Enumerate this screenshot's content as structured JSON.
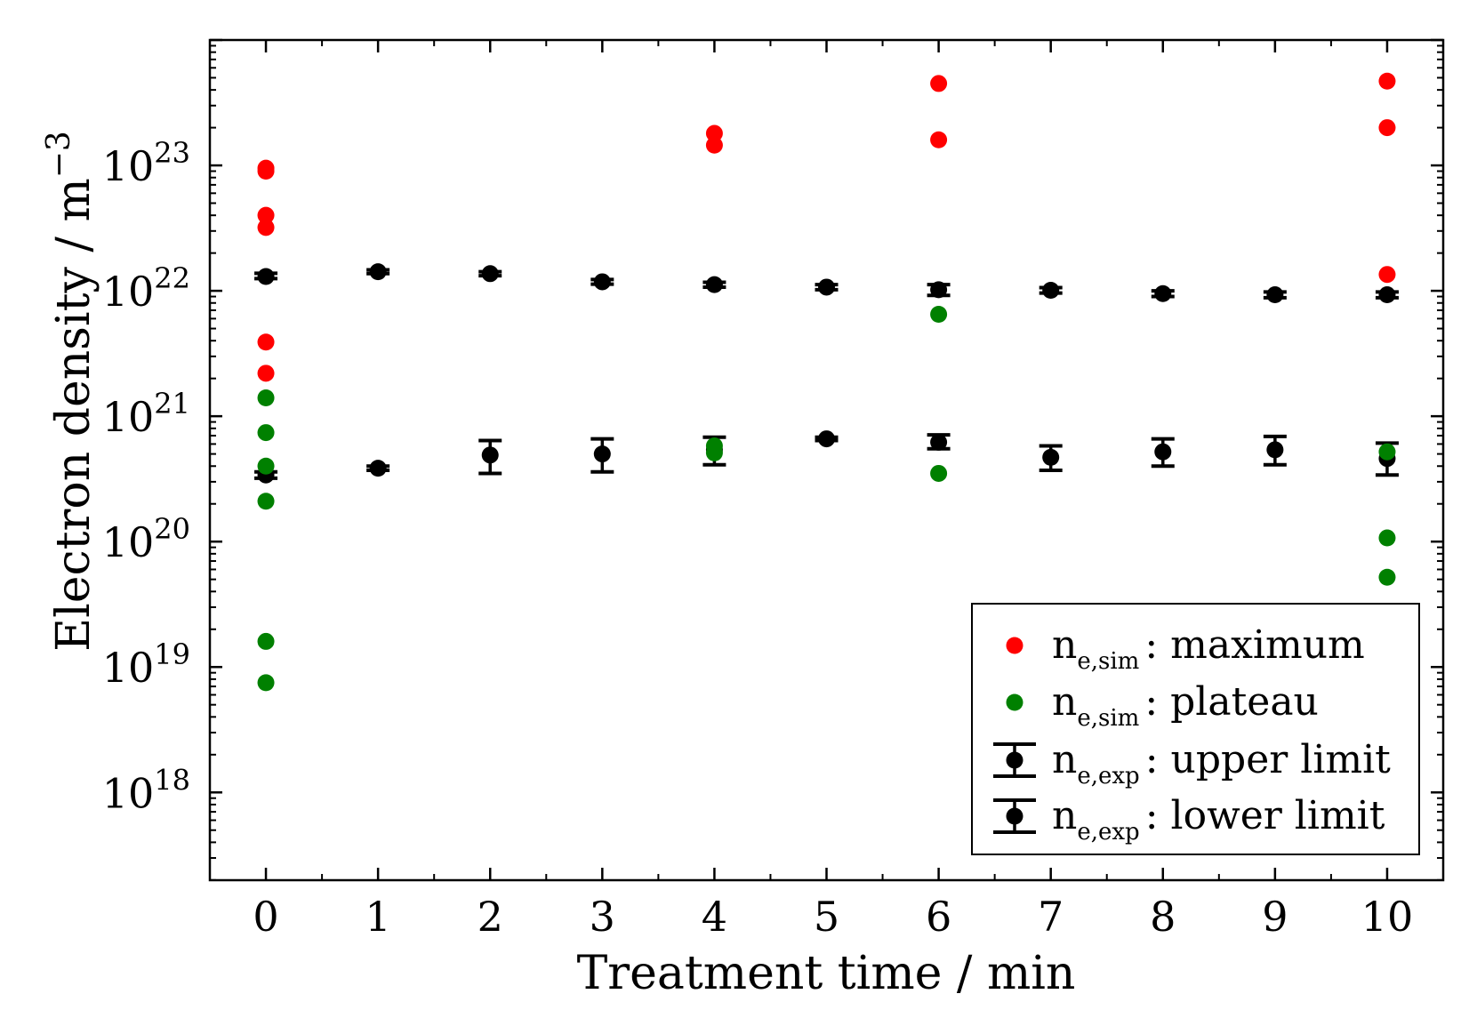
{
  "chart_data": {
    "type": "scatter",
    "xlabel": "Treatment time / min",
    "ylabel": "Electron density / m",
    "ylabel_exponent": "−3",
    "yscale": "log",
    "xlim": [
      -0.5,
      10.5
    ],
    "ylim_log10": [
      17.3,
      24.0
    ],
    "x_ticks": [
      0,
      1,
      2,
      3,
      4,
      5,
      6,
      7,
      8,
      9,
      10
    ],
    "y_tick_exponents": [
      18,
      19,
      20,
      21,
      22,
      23
    ],
    "y_tick_base": "10",
    "legend_position": "lower-right",
    "series": [
      {
        "name": "maximum",
        "legend": {
          "symbol": "n",
          "subscript": "e,sim",
          "sep": ":",
          "label": "maximum"
        },
        "color": "#ff0000",
        "marker": "circle",
        "points": [
          [
            0,
            9e+22
          ],
          [
            0,
            9.5e+22
          ],
          [
            0,
            4e+22
          ],
          [
            0,
            3.2e+22
          ],
          [
            0,
            3.9e+21
          ],
          [
            0,
            2.2e+21
          ],
          [
            4,
            1.8e+23
          ],
          [
            4,
            1.45e+23
          ],
          [
            6,
            4.5e+23
          ],
          [
            6,
            1.6e+23
          ],
          [
            10,
            4.7e+23
          ],
          [
            10,
            2e+23
          ],
          [
            10,
            1.35e+22
          ]
        ]
      },
      {
        "name": "plateau",
        "legend": {
          "symbol": "n",
          "subscript": "e,sim",
          "sep": ":",
          "label": "plateau"
        },
        "color": "#008000",
        "marker": "circle",
        "points": [
          [
            0,
            1.4e+21
          ],
          [
            0,
            7.4e+20
          ],
          [
            0,
            4e+20
          ],
          [
            0,
            2.1e+20
          ],
          [
            0,
            1.6e+19
          ],
          [
            0,
            7.5e+18
          ],
          [
            4,
            5.8e+20
          ],
          [
            4,
            5.1e+20
          ],
          [
            6,
            6.5e+21
          ],
          [
            6,
            3.5e+20
          ],
          [
            10,
            5.2e+20
          ],
          [
            10,
            1.07e+20
          ],
          [
            10,
            5.2e+19
          ]
        ]
      },
      {
        "name": "upper limit",
        "legend": {
          "symbol": "n",
          "subscript": "e,exp",
          "sep": ":",
          "label": "upper limit"
        },
        "color": "#000000",
        "marker": "circle-errorbar",
        "points": [
          [
            0,
            1.3e+22,
            1.25e+22,
            1.38e+22
          ],
          [
            1,
            1.42e+22,
            1.37e+22,
            1.47e+22
          ],
          [
            2,
            1.37e+22,
            1.32e+22,
            1.42e+22
          ],
          [
            3,
            1.18e+22,
            1.13e+22,
            1.23e+22
          ],
          [
            4,
            1.12e+22,
            1.07e+22,
            1.17e+22
          ],
          [
            5,
            1.07e+22,
            1.02e+22,
            1.12e+22
          ],
          [
            6,
            1.02e+22,
            9.2e+21,
            1.12e+22
          ],
          [
            7,
            1.01e+22,
            9.6e+21,
            1.06e+22
          ],
          [
            8,
            9.5e+21,
            9e+21,
            1e+22
          ],
          [
            9,
            9.3e+21,
            8.8e+21,
            9.8e+21
          ],
          [
            10,
            9.3e+21,
            8.8e+21,
            9.8e+21
          ]
        ]
      },
      {
        "name": "lower limit",
        "legend": {
          "symbol": "n",
          "subscript": "e,exp",
          "sep": ":",
          "label": "lower limit"
        },
        "color": "#000000",
        "marker": "circle-errorbar",
        "points": [
          [
            0,
            3.4e+20,
            3.2e+20,
            3.6e+20
          ],
          [
            1,
            3.85e+20,
            3.7e+20,
            4e+20
          ],
          [
            2,
            4.9e+20,
            3.5e+20,
            6.4e+20
          ],
          [
            3,
            5e+20,
            3.6e+20,
            6.6e+20
          ],
          [
            4,
            5.4e+20,
            4.1e+20,
            6.8e+20
          ],
          [
            5,
            6.6e+20,
            6.4e+20,
            6.8e+20
          ],
          [
            6,
            6.2e+20,
            5.5e+20,
            7.1e+20
          ],
          [
            7,
            4.7e+20,
            3.7e+20,
            5.8e+20
          ],
          [
            8,
            5.2e+20,
            4e+20,
            6.6e+20
          ],
          [
            9,
            5.4e+20,
            4.1e+20,
            6.9e+20
          ],
          [
            10,
            4.6e+20,
            3.4e+20,
            6.1e+20
          ]
        ]
      }
    ]
  }
}
